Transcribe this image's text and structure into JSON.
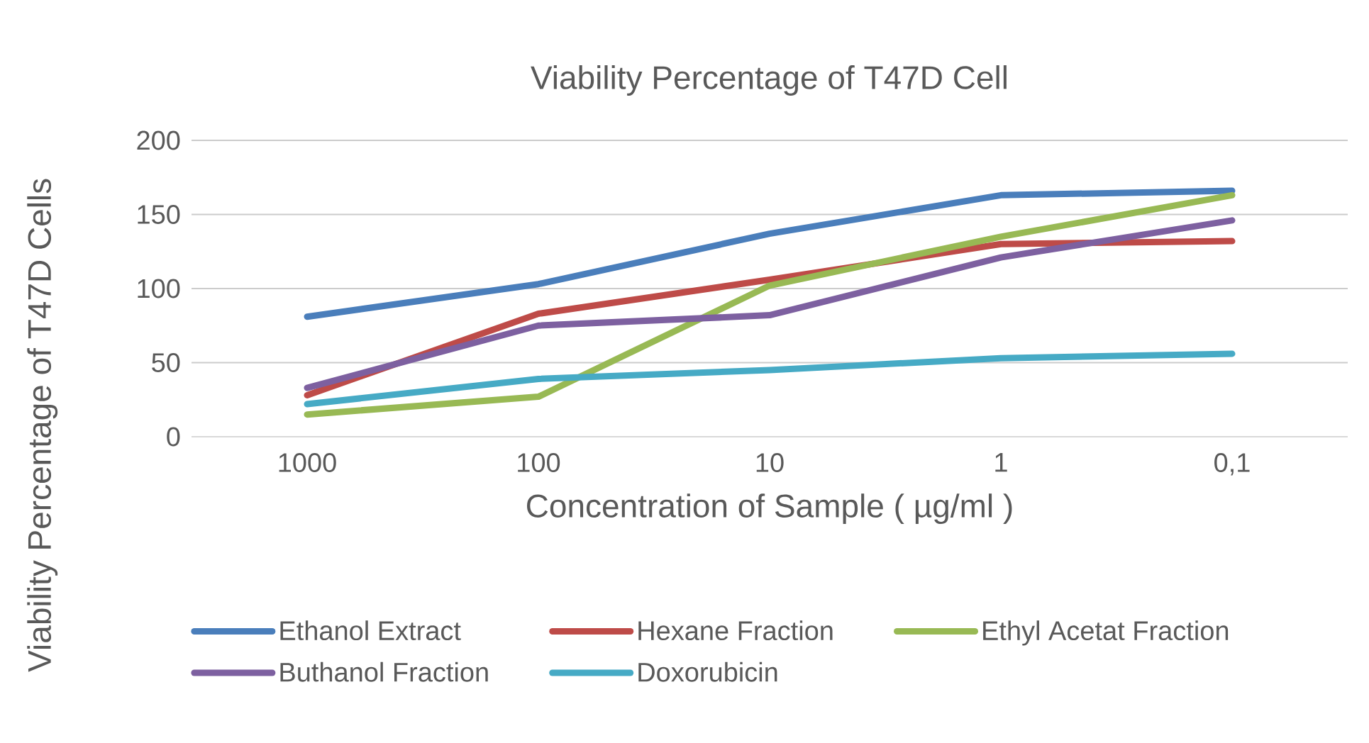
{
  "chart_data": {
    "type": "line",
    "title": "Viability Percentage of T47D Cell",
    "xlabel": "Concentration of Sample ( µg/ml )",
    "ylabel": "Viability Percentage of T47D  Cells",
    "categories": [
      "1000",
      "100",
      "10",
      "1",
      "0,1"
    ],
    "ylim": [
      0,
      200
    ],
    "yticks": [
      0,
      50,
      100,
      150,
      200
    ],
    "grid": "y",
    "legend": "bottom",
    "marker": "none",
    "line_style": "solid",
    "series": [
      {
        "name": "Ethanol Extract",
        "color": "#4a7ebb",
        "values": [
          81,
          103,
          137,
          163,
          166
        ]
      },
      {
        "name": "Hexane Fraction",
        "color": "#be4b48",
        "values": [
          28,
          83,
          106,
          130,
          132
        ]
      },
      {
        "name": "Ethyl Acetat Fraction",
        "color": "#98b954",
        "values": [
          15,
          27,
          102,
          135,
          163
        ]
      },
      {
        "name": "Buthanol Fraction",
        "color": "#7d60a0",
        "values": [
          33,
          75,
          82,
          121,
          146
        ]
      },
      {
        "name": "Doxorubicin",
        "color": "#46aac5",
        "values": [
          22,
          39,
          45,
          53,
          56
        ]
      }
    ]
  }
}
